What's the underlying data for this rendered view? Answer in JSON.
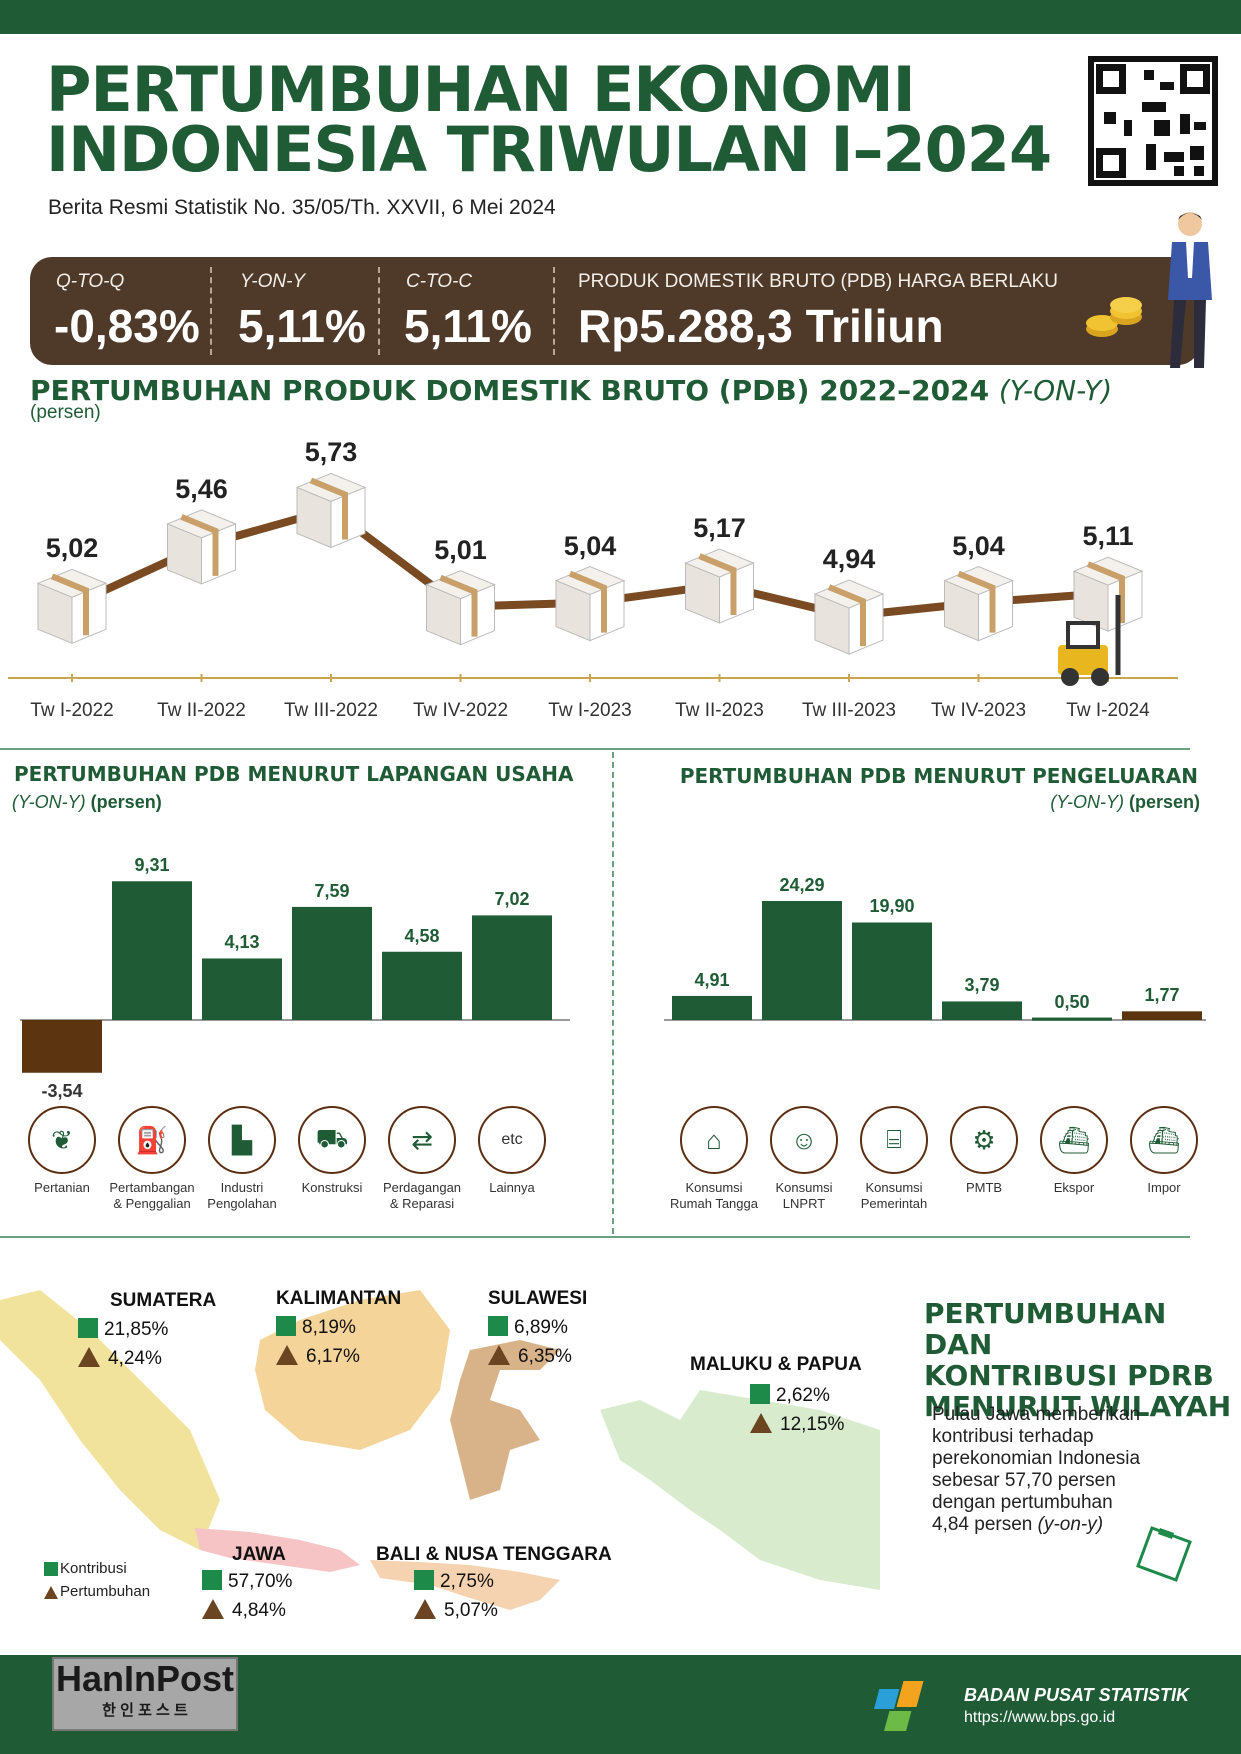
{
  "header": {
    "title_line1": "PERTUMBUHAN EKONOMI",
    "title_line2": "INDONESIA TRIWULAN I–2024",
    "subtitle": "Berita Resmi Statistik No. 35/05/Th. XXVII, 6 Mei 2024"
  },
  "kpis": {
    "qtq_label": "Q-TO-Q",
    "qtq_value": "-0,83%",
    "yoy_label": "Y-ON-Y",
    "yoy_value": "5,11%",
    "ctc_label": "C-TO-C",
    "ctc_value": "5,11%",
    "pdb_label": "PRODUK DOMESTIK BRUTO (PDB) HARGA BERLAKU",
    "pdb_value": "Rp5.288,3 Triliun"
  },
  "line_chart": {
    "title": "PERTUMBUHAN PRODUK DOMESTIK BRUTO (PDB) 2022–2024",
    "title_suffix": "(Y-ON-Y)",
    "unit": "(persen)"
  },
  "left_chart": {
    "title": "PERTUMBUHAN PDB MENURUT LAPANGAN USAHA",
    "yoy": "(Y-ON-Y)",
    "unit": "(persen)"
  },
  "right_chart": {
    "title": "PERTUMBUHAN PDB MENURUT PENGELUARAN",
    "yoy": "(Y-ON-Y)",
    "unit": "(persen)"
  },
  "chart_data": [
    {
      "type": "line",
      "x": [
        "Tw I-2022",
        "Tw II-2022",
        "Tw  III-2022",
        "Tw IV-2022",
        "Tw I-2023",
        "Tw II-2023",
        "Tw III-2023",
        "Tw IV-2023",
        "Tw I-2024"
      ],
      "values": [
        5.02,
        5.46,
        5.73,
        5.01,
        5.04,
        5.17,
        4.94,
        5.04,
        5.11
      ],
      "labels": [
        "5,02",
        "5,46",
        "5,73",
        "5,01",
        "5,04",
        "5,17",
        "4,94",
        "5,04",
        "5,11"
      ]
    },
    {
      "type": "bar",
      "categories": [
        "Pertanian",
        "Pertambangan & Penggalian",
        "Industri Pengolahan",
        "Konstruksi",
        "Perdagangan & Reparasi",
        "Lainnya"
      ],
      "values": [
        -3.54,
        9.31,
        4.13,
        7.59,
        4.58,
        7.02
      ],
      "labels": [
        "-3,54",
        "9,31",
        "4,13",
        "7,59",
        "4,58",
        "7,02"
      ]
    },
    {
      "type": "bar",
      "categories": [
        "Konsumsi Rumah Tangga",
        "Konsumsi LNPRT",
        "Konsumsi Pemerintah",
        "PMTB",
        "Ekspor",
        "Impor"
      ],
      "values": [
        4.91,
        24.29,
        19.9,
        3.79,
        0.5,
        1.77
      ],
      "labels": [
        "4,91",
        "24,29",
        "19,90",
        "3,79",
        "0,50",
        "1,77"
      ]
    }
  ],
  "industry_icons": [
    {
      "label1": "Pertanian",
      "label2": "",
      "icon": "leaf-icon"
    },
    {
      "label1": "Pertambangan",
      "label2": "& Penggalian",
      "icon": "oil-pump-icon"
    },
    {
      "label1": "Industri",
      "label2": "Pengolahan",
      "icon": "factory-icon"
    },
    {
      "label1": "Konstruksi",
      "label2": "",
      "icon": "truck-icon"
    },
    {
      "label1": "Perdagangan",
      "label2": "& Reparasi",
      "icon": "trade-icon"
    },
    {
      "label1": "Lainnya",
      "label2": "",
      "icon": "etc-icon",
      "text": "etc"
    }
  ],
  "expend_icons": [
    {
      "label1": "Konsumsi",
      "label2": "Rumah Tangga",
      "icon": "household-icon"
    },
    {
      "label1": "Konsumsi",
      "label2": "LNPRT",
      "icon": "person-icon"
    },
    {
      "label1": "Konsumsi",
      "label2": "Pemerintah",
      "icon": "government-icon"
    },
    {
      "label1": "PMTB",
      "label2": "",
      "icon": "robot-arm-icon"
    },
    {
      "label1": "Ekspor",
      "label2": "",
      "icon": "export-ship-icon"
    },
    {
      "label1": "Impor",
      "label2": "",
      "icon": "import-ship-icon"
    }
  ],
  "regions": {
    "sumatera": {
      "name": "SUMATERA",
      "kontribusi": "21,85%",
      "pertumbuhan": "4,24%"
    },
    "kalimantan": {
      "name": "KALIMANTAN",
      "kontribusi": "8,19%",
      "pertumbuhan": "6,17%"
    },
    "sulawesi": {
      "name": "SULAWESI",
      "kontribusi": "6,89%",
      "pertumbuhan": "6,35%"
    },
    "maluku": {
      "name": "MALUKU & PAPUA",
      "kontribusi": "2,62%",
      "pertumbuhan": "12,15%"
    },
    "jawa": {
      "name": "JAWA",
      "kontribusi": "57,70%",
      "pertumbuhan": "4,84%"
    },
    "bali": {
      "name": "BALI & NUSA TENGGARA",
      "kontribusi": "2,75%",
      "pertumbuhan": "5,07%"
    }
  },
  "legend": {
    "kontribusi": "Kontribusi",
    "pertumbuhan": "Pertumbuhan"
  },
  "region_section": {
    "title1": "PERTUMBUHAN DAN",
    "title2": "KONTRIBUSI PDRB",
    "title3": "MENURUT WILAYAH",
    "desc1": "Pulau Jawa memberikan",
    "desc2": "kontribusi terhadap",
    "desc3": "perekonomian Indonesia",
    "desc4": "sebesar 57,70 persen",
    "desc5": "dengan pertumbuhan",
    "desc6": "4,84 persen",
    "desc6_italic": "(y-on-y)"
  },
  "footer": {
    "logo_left": "HanInPost",
    "logo_left_sub": "한 인 포 스 트",
    "org": "BADAN PUSAT STATISTIK",
    "url": "https://www.bps.go.id"
  },
  "colors": {
    "green": "#1f5c36",
    "brown": "#4f3a2a",
    "bar_neg": "#5c3410",
    "line": "#7a4a22"
  }
}
